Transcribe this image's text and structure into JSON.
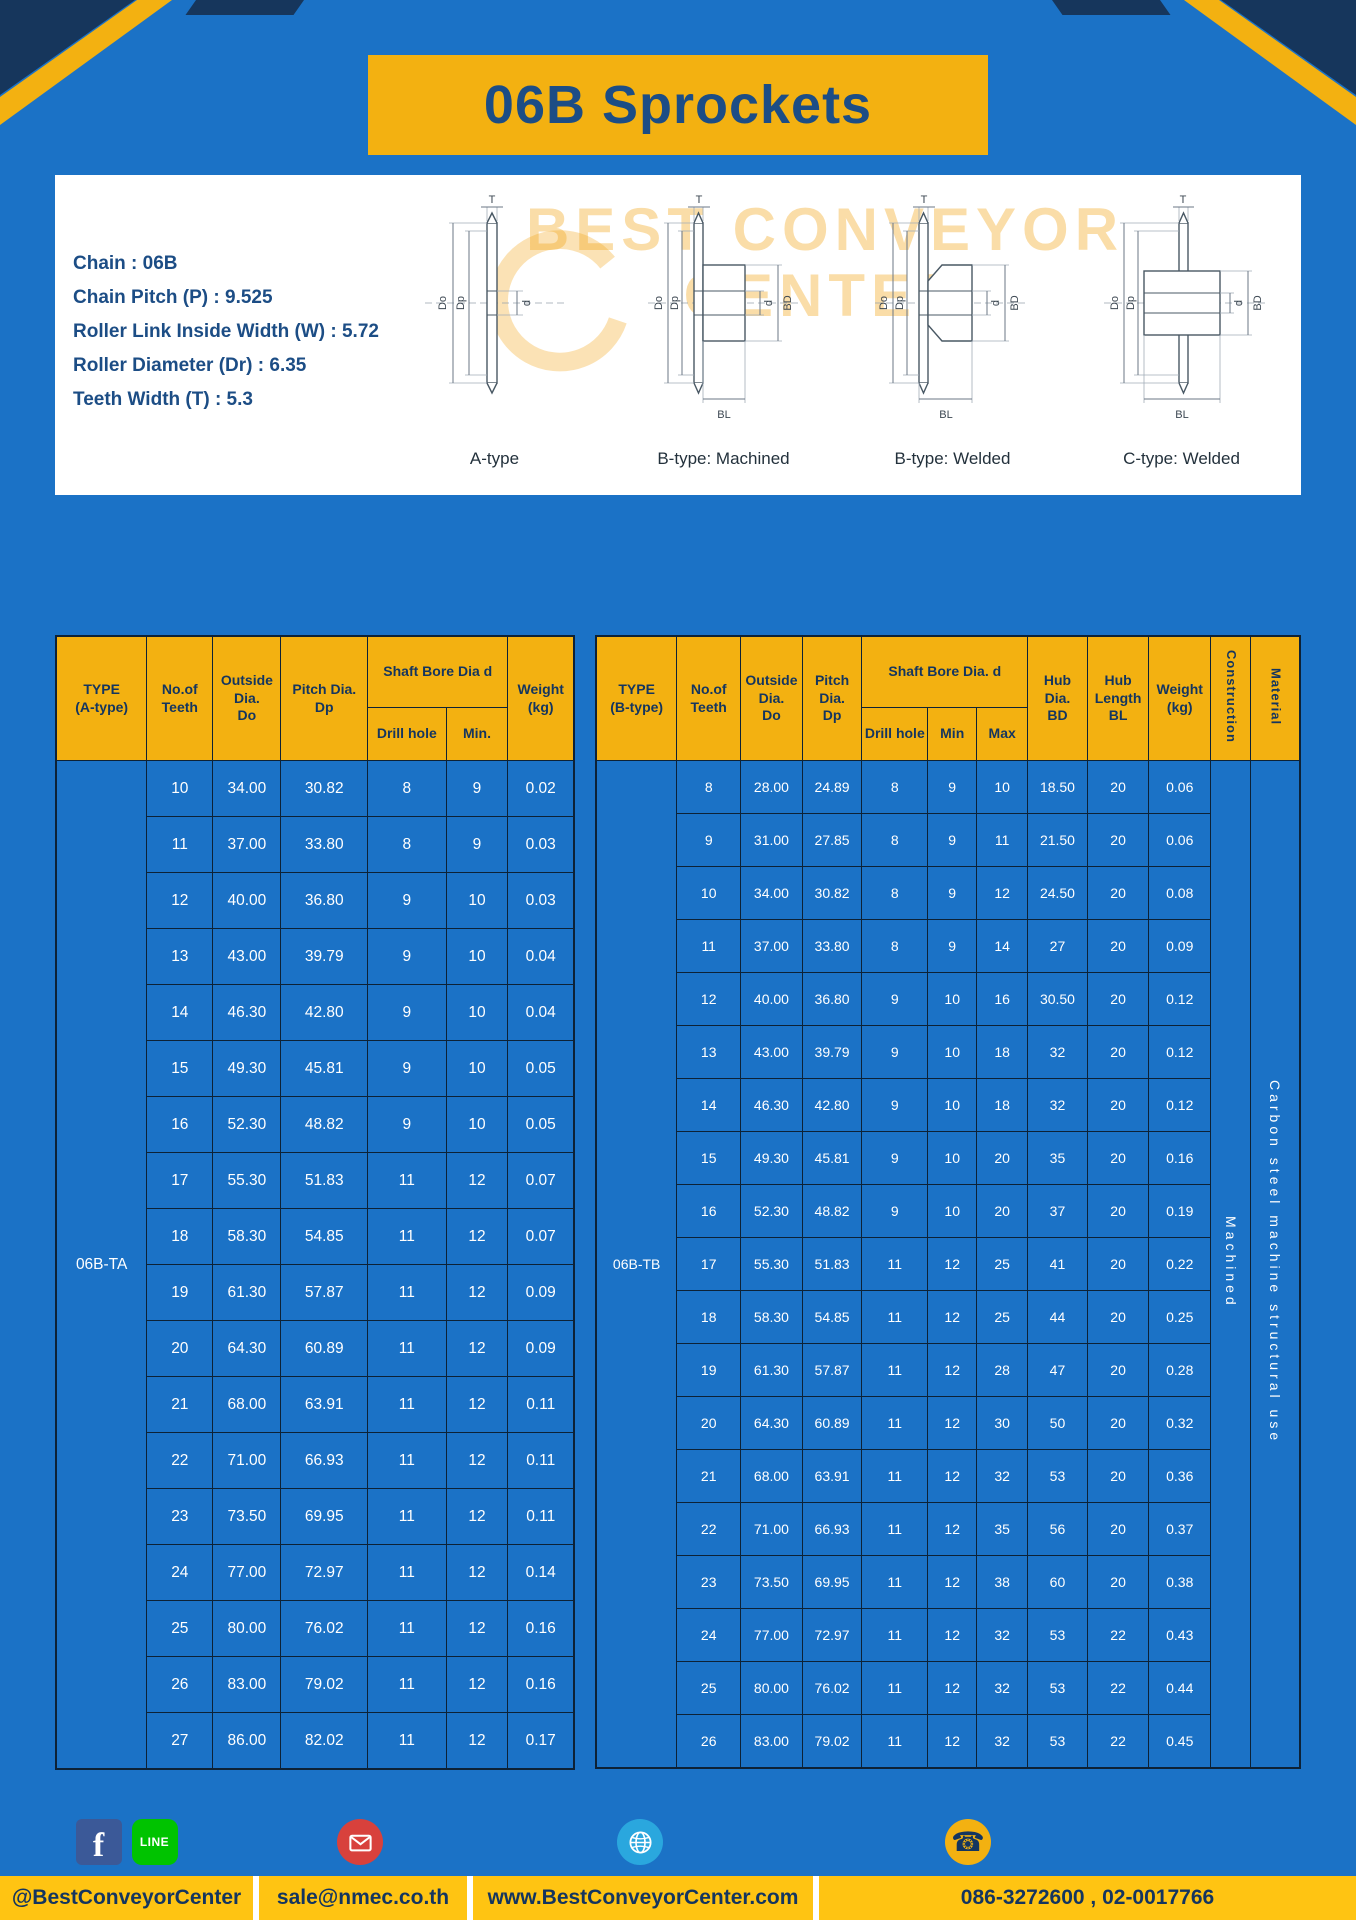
{
  "page": {
    "title": "06B Sprockets"
  },
  "specs": {
    "lines": [
      "Chain : 06B",
      "Chain Pitch (P) : 9.525",
      "Roller Link Inside Width (W) : 5.72",
      "Roller Diameter (Dr) : 6.35",
      "Teeth Width (T) : 5.3"
    ]
  },
  "diagrams": {
    "watermark": "BEST CONVEYOR CENTER",
    "captions": [
      "A-type",
      "B-type: Machined",
      "B-type: Welded",
      "C-type: Welded"
    ],
    "labels": {
      "t": "T",
      "do": "Do",
      "dp": "Dp",
      "d": "d",
      "bd": "BD",
      "bl": "BL"
    }
  },
  "tables": {
    "left": {
      "headers": {
        "type": "TYPE\n(A-type)",
        "teeth": "No.of\nTeeth",
        "outside": "Outside\nDia.\nDo",
        "pitch": "Pitch Dia.\nDp",
        "shaft": "Shaft Bore Dia d",
        "drill": "Drill hole",
        "min": "Min.",
        "weight": "Weight\n(kg)"
      },
      "type_label": "06B-TA",
      "rows": [
        [
          "10",
          "34.00",
          "30.82",
          "8",
          "9",
          "0.02"
        ],
        [
          "11",
          "37.00",
          "33.80",
          "8",
          "9",
          "0.03"
        ],
        [
          "12",
          "40.00",
          "36.80",
          "9",
          "10",
          "0.03"
        ],
        [
          "13",
          "43.00",
          "39.79",
          "9",
          "10",
          "0.04"
        ],
        [
          "14",
          "46.30",
          "42.80",
          "9",
          "10",
          "0.04"
        ],
        [
          "15",
          "49.30",
          "45.81",
          "9",
          "10",
          "0.05"
        ],
        [
          "16",
          "52.30",
          "48.82",
          "9",
          "10",
          "0.05"
        ],
        [
          "17",
          "55.30",
          "51.83",
          "11",
          "12",
          "0.07"
        ],
        [
          "18",
          "58.30",
          "54.85",
          "11",
          "12",
          "0.07"
        ],
        [
          "19",
          "61.30",
          "57.87",
          "11",
          "12",
          "0.09"
        ],
        [
          "20",
          "64.30",
          "60.89",
          "11",
          "12",
          "0.09"
        ],
        [
          "21",
          "68.00",
          "63.91",
          "11",
          "12",
          "0.11"
        ],
        [
          "22",
          "71.00",
          "66.93",
          "11",
          "12",
          "0.11"
        ],
        [
          "23",
          "73.50",
          "69.95",
          "11",
          "12",
          "0.11"
        ],
        [
          "24",
          "77.00",
          "72.97",
          "11",
          "12",
          "0.14"
        ],
        [
          "25",
          "80.00",
          "76.02",
          "11",
          "12",
          "0.16"
        ],
        [
          "26",
          "83.00",
          "79.02",
          "11",
          "12",
          "0.16"
        ],
        [
          "27",
          "86.00",
          "82.02",
          "11",
          "12",
          "0.17"
        ]
      ]
    },
    "right": {
      "headers": {
        "type": "TYPE\n(B-type)",
        "teeth": "No.of\nTeeth",
        "outside": "Outside\nDia.\nDo",
        "pitch": "Pitch\nDia.\nDp",
        "shaft": "Shaft Bore Dia.  d",
        "drill": "Drill hole",
        "min": "Min",
        "max": "Max",
        "hub_dia": "Hub\nDia.\nBD",
        "hub_len": "Hub\nLength\nBL",
        "weight": "Weight\n(kg)",
        "construction": "Construction",
        "material": "Material"
      },
      "type_label": "06B-TB",
      "vertical": [
        "Machined",
        "Carbon steel machine structural use"
      ],
      "rows": [
        [
          "8",
          "28.00",
          "24.89",
          "8",
          "9",
          "10",
          "18.50",
          "20",
          "0.06"
        ],
        [
          "9",
          "31.00",
          "27.85",
          "8",
          "9",
          "11",
          "21.50",
          "20",
          "0.06"
        ],
        [
          "10",
          "34.00",
          "30.82",
          "8",
          "9",
          "12",
          "24.50",
          "20",
          "0.08"
        ],
        [
          "11",
          "37.00",
          "33.80",
          "8",
          "9",
          "14",
          "27",
          "20",
          "0.09"
        ],
        [
          "12",
          "40.00",
          "36.80",
          "9",
          "10",
          "16",
          "30.50",
          "20",
          "0.12"
        ],
        [
          "13",
          "43.00",
          "39.79",
          "9",
          "10",
          "18",
          "32",
          "20",
          "0.12"
        ],
        [
          "14",
          "46.30",
          "42.80",
          "9",
          "10",
          "18",
          "32",
          "20",
          "0.12"
        ],
        [
          "15",
          "49.30",
          "45.81",
          "9",
          "10",
          "20",
          "35",
          "20",
          "0.16"
        ],
        [
          "16",
          "52.30",
          "48.82",
          "9",
          "10",
          "20",
          "37",
          "20",
          "0.19"
        ],
        [
          "17",
          "55.30",
          "51.83",
          "11",
          "12",
          "25",
          "41",
          "20",
          "0.22"
        ],
        [
          "18",
          "58.30",
          "54.85",
          "11",
          "12",
          "25",
          "44",
          "20",
          "0.25"
        ],
        [
          "19",
          "61.30",
          "57.87",
          "11",
          "12",
          "28",
          "47",
          "20",
          "0.28"
        ],
        [
          "20",
          "64.30",
          "60.89",
          "11",
          "12",
          "30",
          "50",
          "20",
          "0.32"
        ],
        [
          "21",
          "68.00",
          "63.91",
          "11",
          "12",
          "32",
          "53",
          "20",
          "0.36"
        ],
        [
          "22",
          "71.00",
          "66.93",
          "11",
          "12",
          "35",
          "56",
          "20",
          "0.37"
        ],
        [
          "23",
          "73.50",
          "69.95",
          "11",
          "12",
          "38",
          "60",
          "20",
          "0.38"
        ],
        [
          "24",
          "77.00",
          "72.97",
          "11",
          "12",
          "32",
          "53",
          "22",
          "0.43"
        ],
        [
          "25",
          "80.00",
          "76.02",
          "11",
          "12",
          "32",
          "53",
          "22",
          "0.44"
        ],
        [
          "26",
          "83.00",
          "79.02",
          "11",
          "12",
          "32",
          "53",
          "22",
          "0.45"
        ]
      ]
    }
  },
  "footer": {
    "facebook_letter": "f",
    "line_label": "LINE",
    "phone_glyph": "☎",
    "sections": [
      {
        "text": "@BestConveyorCenter"
      },
      {
        "text": "sale@nmec.co.th"
      },
      {
        "text": "www.BestConveyorCenter.com"
      },
      {
        "text": "086-3272600 , 02-0017766"
      }
    ]
  },
  "colors": {
    "background_blue": "#1b72c6",
    "accent_yellow": "#f3b111",
    "footer_yellow": "#ffc412",
    "navy": "#16365c",
    "title_blue": "#1c4d85"
  }
}
